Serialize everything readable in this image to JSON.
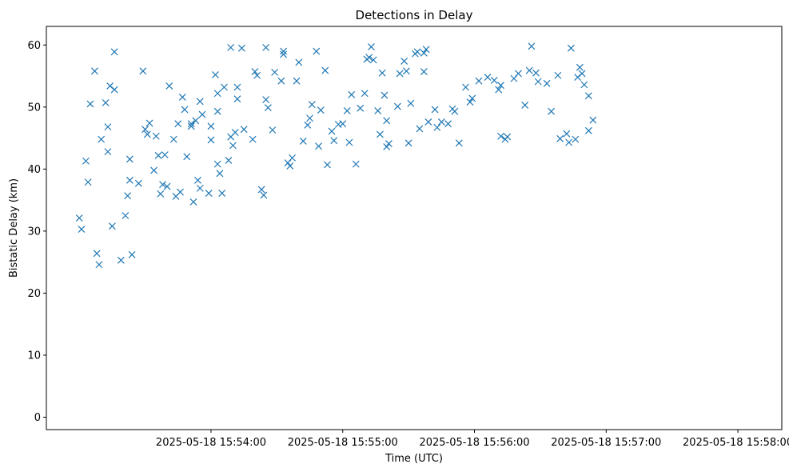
{
  "chart_data": {
    "type": "scatter",
    "title": "Detections in Delay",
    "xlabel": "Time (UTC)",
    "ylabel": "Bistatic Delay (km)",
    "xlim": [
      "2025-05-18 15:52:45",
      "2025-05-18 15:58:20"
    ],
    "ylim": [
      -2,
      63
    ],
    "x_ticks": [
      "2025-05-18 15:54:00",
      "2025-05-18 15:55:00",
      "2025-05-18 15:56:00",
      "2025-05-18 15:57:00",
      "2025-05-18 15:58:00"
    ],
    "y_ticks": [
      0,
      10,
      20,
      30,
      40,
      50,
      60
    ],
    "marker": "x",
    "color": "#1f77b4",
    "grid": false,
    "series": [
      {
        "points": [
          [
            "2025-05-18 15:53:00",
            32.1
          ],
          [
            "2025-05-18 15:53:01",
            30.3
          ],
          [
            "2025-05-18 15:53:03",
            41.3
          ],
          [
            "2025-05-18 15:53:04",
            37.9
          ],
          [
            "2025-05-18 15:53:05",
            50.5
          ],
          [
            "2025-05-18 15:53:07",
            55.8
          ],
          [
            "2025-05-18 15:53:08",
            26.4
          ],
          [
            "2025-05-18 15:53:09",
            24.6
          ],
          [
            "2025-05-18 15:53:10",
            44.8
          ],
          [
            "2025-05-18 15:53:12",
            50.7
          ],
          [
            "2025-05-18 15:53:13",
            46.8
          ],
          [
            "2025-05-18 15:53:13",
            42.8
          ],
          [
            "2025-05-18 15:53:14",
            53.4
          ],
          [
            "2025-05-18 15:53:15",
            30.8
          ],
          [
            "2025-05-18 15:53:16",
            52.8
          ],
          [
            "2025-05-18 15:53:16",
            58.9
          ],
          [
            "2025-05-18 15:53:19",
            25.3
          ],
          [
            "2025-05-18 15:53:21",
            32.5
          ],
          [
            "2025-05-18 15:53:22",
            35.7
          ],
          [
            "2025-05-18 15:53:23",
            38.2
          ],
          [
            "2025-05-18 15:53:23",
            41.6
          ],
          [
            "2025-05-18 15:53:24",
            26.2
          ],
          [
            "2025-05-18 15:53:27",
            37.7
          ],
          [
            "2025-05-18 15:53:29",
            55.8
          ],
          [
            "2025-05-18 15:53:30",
            46.4
          ],
          [
            "2025-05-18 15:53:31",
            45.6
          ],
          [
            "2025-05-18 15:53:32",
            47.4
          ],
          [
            "2025-05-18 15:53:34",
            39.8
          ],
          [
            "2025-05-18 15:53:35",
            45.3
          ],
          [
            "2025-05-18 15:53:36",
            42.2
          ],
          [
            "2025-05-18 15:53:37",
            36.0
          ],
          [
            "2025-05-18 15:53:38",
            37.5
          ],
          [
            "2025-05-18 15:53:39",
            42.3
          ],
          [
            "2025-05-18 15:53:40",
            37.2
          ],
          [
            "2025-05-18 15:53:41",
            53.4
          ],
          [
            "2025-05-18 15:53:43",
            44.8
          ],
          [
            "2025-05-18 15:53:44",
            35.6
          ],
          [
            "2025-05-18 15:53:45",
            47.3
          ],
          [
            "2025-05-18 15:53:46",
            36.3
          ],
          [
            "2025-05-18 15:53:47",
            51.6
          ],
          [
            "2025-05-18 15:53:48",
            49.6
          ],
          [
            "2025-05-18 15:53:49",
            42.0
          ],
          [
            "2025-05-18 15:53:51",
            47.3
          ],
          [
            "2025-05-18 15:53:51",
            46.9
          ],
          [
            "2025-05-18 15:53:52",
            34.7
          ],
          [
            "2025-05-18 15:53:53",
            47.8
          ],
          [
            "2025-05-18 15:53:54",
            38.2
          ],
          [
            "2025-05-18 15:53:55",
            50.9
          ],
          [
            "2025-05-18 15:53:55",
            36.9
          ],
          [
            "2025-05-18 15:53:56",
            48.8
          ],
          [
            "2025-05-18 15:53:59",
            36.1
          ],
          [
            "2025-05-18 15:54:00",
            44.7
          ],
          [
            "2025-05-18 15:54:00",
            46.9
          ],
          [
            "2025-05-18 15:54:02",
            55.2
          ],
          [
            "2025-05-18 15:54:03",
            52.2
          ],
          [
            "2025-05-18 15:54:03",
            49.3
          ],
          [
            "2025-05-18 15:54:03",
            40.8
          ],
          [
            "2025-05-18 15:54:04",
            39.3
          ],
          [
            "2025-05-18 15:54:05",
            36.1
          ],
          [
            "2025-05-18 15:54:06",
            53.2
          ],
          [
            "2025-05-18 15:54:08",
            41.4
          ],
          [
            "2025-05-18 15:54:09",
            59.6
          ],
          [
            "2025-05-18 15:54:09",
            45.2
          ],
          [
            "2025-05-18 15:54:10",
            43.8
          ],
          [
            "2025-05-18 15:54:11",
            45.9
          ],
          [
            "2025-05-18 15:54:12",
            53.2
          ],
          [
            "2025-05-18 15:54:12",
            51.3
          ],
          [
            "2025-05-18 15:54:14",
            59.5
          ],
          [
            "2025-05-18 15:54:15",
            46.4
          ],
          [
            "2025-05-18 15:54:19",
            44.8
          ],
          [
            "2025-05-18 15:54:20",
            55.7
          ],
          [
            "2025-05-18 15:54:21",
            55.1
          ],
          [
            "2025-05-18 15:54:23",
            36.7
          ],
          [
            "2025-05-18 15:54:24",
            35.8
          ],
          [
            "2025-05-18 15:54:25",
            59.6
          ],
          [
            "2025-05-18 15:54:25",
            51.2
          ],
          [
            "2025-05-18 15:54:26",
            49.9
          ],
          [
            "2025-05-18 15:54:28",
            46.3
          ],
          [
            "2025-05-18 15:54:29",
            55.6
          ],
          [
            "2025-05-18 15:54:32",
            54.2
          ],
          [
            "2025-05-18 15:54:33",
            59.0
          ],
          [
            "2025-05-18 15:54:33",
            58.5
          ],
          [
            "2025-05-18 15:54:35",
            41.0
          ],
          [
            "2025-05-18 15:54:36",
            40.5
          ],
          [
            "2025-05-18 15:54:37",
            41.8
          ],
          [
            "2025-05-18 15:54:39",
            54.2
          ],
          [
            "2025-05-18 15:54:40",
            57.2
          ],
          [
            "2025-05-18 15:54:42",
            44.5
          ],
          [
            "2025-05-18 15:54:44",
            47.1
          ],
          [
            "2025-05-18 15:54:45",
            48.2
          ],
          [
            "2025-05-18 15:54:46",
            50.4
          ],
          [
            "2025-05-18 15:54:48",
            59.0
          ],
          [
            "2025-05-18 15:54:49",
            43.7
          ],
          [
            "2025-05-18 15:54:50",
            49.5
          ],
          [
            "2025-05-18 15:54:52",
            55.9
          ],
          [
            "2025-05-18 15:54:53",
            40.7
          ],
          [
            "2025-05-18 15:54:55",
            46.1
          ],
          [
            "2025-05-18 15:54:56",
            44.6
          ],
          [
            "2025-05-18 15:54:58",
            47.2
          ],
          [
            "2025-05-18 15:55:00",
            47.3
          ],
          [
            "2025-05-18 15:55:02",
            49.4
          ],
          [
            "2025-05-18 15:55:03",
            44.3
          ],
          [
            "2025-05-18 15:55:04",
            52.0
          ],
          [
            "2025-05-18 15:55:06",
            40.8
          ],
          [
            "2025-05-18 15:55:08",
            49.8
          ],
          [
            "2025-05-18 15:55:10",
            52.2
          ],
          [
            "2025-05-18 15:55:11",
            57.7
          ],
          [
            "2025-05-18 15:55:12",
            58.0
          ],
          [
            "2025-05-18 15:55:13",
            59.7
          ],
          [
            "2025-05-18 15:55:14",
            57.6
          ],
          [
            "2025-05-18 15:55:16",
            49.4
          ],
          [
            "2025-05-18 15:55:17",
            45.6
          ],
          [
            "2025-05-18 15:55:18",
            55.5
          ],
          [
            "2025-05-18 15:55:19",
            51.9
          ],
          [
            "2025-05-18 15:55:20",
            47.8
          ],
          [
            "2025-05-18 15:55:20",
            43.6
          ],
          [
            "2025-05-18 15:55:21",
            44.1
          ],
          [
            "2025-05-18 15:55:25",
            50.1
          ],
          [
            "2025-05-18 15:55:26",
            55.4
          ],
          [
            "2025-05-18 15:55:28",
            57.4
          ],
          [
            "2025-05-18 15:55:29",
            55.8
          ],
          [
            "2025-05-18 15:55:30",
            44.2
          ],
          [
            "2025-05-18 15:55:31",
            50.6
          ],
          [
            "2025-05-18 15:55:33",
            58.6
          ],
          [
            "2025-05-18 15:55:34",
            58.9
          ],
          [
            "2025-05-18 15:55:35",
            46.5
          ],
          [
            "2025-05-18 15:55:37",
            58.7
          ],
          [
            "2025-05-18 15:55:37",
            55.7
          ],
          [
            "2025-05-18 15:55:38",
            59.3
          ],
          [
            "2025-05-18 15:55:39",
            47.6
          ],
          [
            "2025-05-18 15:55:42",
            49.6
          ],
          [
            "2025-05-18 15:55:43",
            46.7
          ],
          [
            "2025-05-18 15:55:45",
            47.6
          ],
          [
            "2025-05-18 15:55:48",
            47.3
          ],
          [
            "2025-05-18 15:55:50",
            49.7
          ],
          [
            "2025-05-18 15:55:51",
            49.3
          ],
          [
            "2025-05-18 15:55:53",
            44.2
          ],
          [
            "2025-05-18 15:55:56",
            53.2
          ],
          [
            "2025-05-18 15:55:58",
            50.8
          ],
          [
            "2025-05-18 15:55:59",
            51.4
          ],
          [
            "2025-05-18 15:56:02",
            54.2
          ],
          [
            "2025-05-18 15:56:06",
            54.8
          ],
          [
            "2025-05-18 15:56:09",
            54.3
          ],
          [
            "2025-05-18 15:56:11",
            52.8
          ],
          [
            "2025-05-18 15:56:12",
            53.5
          ],
          [
            "2025-05-18 15:56:12",
            45.3
          ],
          [
            "2025-05-18 15:56:14",
            44.8
          ],
          [
            "2025-05-18 15:56:15",
            45.2
          ],
          [
            "2025-05-18 15:56:18",
            54.6
          ],
          [
            "2025-05-18 15:56:20",
            55.4
          ],
          [
            "2025-05-18 15:56:23",
            50.3
          ],
          [
            "2025-05-18 15:56:25",
            55.9
          ],
          [
            "2025-05-18 15:56:26",
            59.8
          ],
          [
            "2025-05-18 15:56:28",
            55.5
          ],
          [
            "2025-05-18 15:56:29",
            54.1
          ],
          [
            "2025-05-18 15:56:33",
            53.8
          ],
          [
            "2025-05-18 15:56:35",
            49.3
          ],
          [
            "2025-05-18 15:56:38",
            55.1
          ],
          [
            "2025-05-18 15:56:39",
            44.9
          ],
          [
            "2025-05-18 15:56:42",
            45.7
          ],
          [
            "2025-05-18 15:56:43",
            44.3
          ],
          [
            "2025-05-18 15:56:44",
            59.5
          ],
          [
            "2025-05-18 15:56:46",
            44.8
          ],
          [
            "2025-05-18 15:56:47",
            54.8
          ],
          [
            "2025-05-18 15:56:48",
            56.4
          ],
          [
            "2025-05-18 15:56:49",
            55.4
          ],
          [
            "2025-05-18 15:56:50",
            53.6
          ],
          [
            "2025-05-18 15:56:52",
            51.8
          ],
          [
            "2025-05-18 15:56:52",
            46.2
          ],
          [
            "2025-05-18 15:56:54",
            47.9
          ]
        ]
      }
    ]
  }
}
